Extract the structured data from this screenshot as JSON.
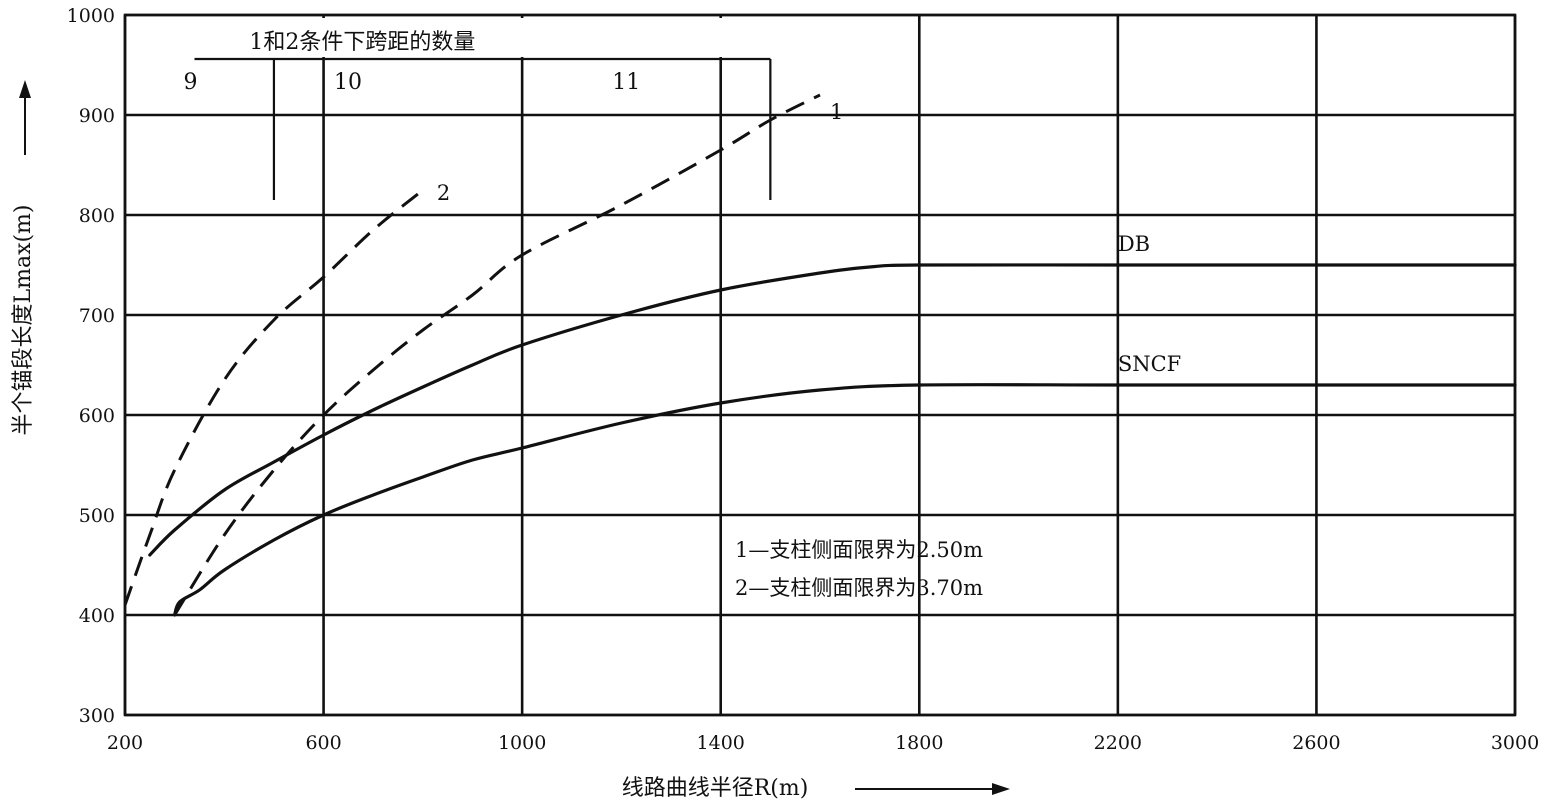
{
  "chart_data": {
    "type": "line",
    "title": "",
    "xlabel": "线路曲线半径R(m)",
    "ylabel": "半个锚段长度Lmax(m)",
    "xlim": [
      200,
      3000
    ],
    "ylim": [
      300,
      1000
    ],
    "x_ticks": [
      "200",
      "600",
      "1000",
      "1400",
      "1800",
      "2200",
      "2600",
      "3000"
    ],
    "y_ticks": [
      "300",
      "400",
      "500",
      "600",
      "700",
      "800",
      "900",
      "1000"
    ],
    "grid": true,
    "series": [
      {
        "name": "DB",
        "style": "solid",
        "points": [
          [
            250,
            460
          ],
          [
            300,
            485
          ],
          [
            400,
            525
          ],
          [
            500,
            553
          ],
          [
            600,
            580
          ],
          [
            700,
            605
          ],
          [
            800,
            628
          ],
          [
            900,
            650
          ],
          [
            1000,
            670
          ],
          [
            1200,
            700
          ],
          [
            1400,
            725
          ],
          [
            1600,
            742
          ],
          [
            1700,
            748
          ],
          [
            1800,
            750
          ],
          [
            2200,
            750
          ],
          [
            2600,
            750
          ],
          [
            3000,
            750
          ]
        ]
      },
      {
        "name": "SNCF",
        "style": "solid",
        "points": [
          [
            300,
            400
          ],
          [
            310,
            413
          ],
          [
            350,
            425
          ],
          [
            400,
            445
          ],
          [
            500,
            475
          ],
          [
            600,
            500
          ],
          [
            700,
            520
          ],
          [
            800,
            538
          ],
          [
            900,
            555
          ],
          [
            1000,
            567
          ],
          [
            1200,
            592
          ],
          [
            1400,
            612
          ],
          [
            1600,
            625
          ],
          [
            1800,
            630
          ],
          [
            2200,
            630
          ],
          [
            2600,
            630
          ],
          [
            3000,
            630
          ]
        ]
      },
      {
        "name": "1",
        "style": "dashed",
        "points": [
          [
            300,
            400
          ],
          [
            400,
            480
          ],
          [
            500,
            545
          ],
          [
            600,
            600
          ],
          [
            700,
            645
          ],
          [
            800,
            685
          ],
          [
            900,
            720
          ],
          [
            1000,
            760
          ],
          [
            1200,
            810
          ],
          [
            1400,
            865
          ],
          [
            1500,
            895
          ],
          [
            1600,
            920
          ]
        ]
      },
      {
        "name": "2",
        "style": "dashed",
        "points": [
          [
            200,
            410
          ],
          [
            250,
            480
          ],
          [
            300,
            545
          ],
          [
            400,
            635
          ],
          [
            500,
            695
          ],
          [
            600,
            738
          ],
          [
            700,
            785
          ],
          [
            800,
            825
          ]
        ]
      }
    ],
    "bracket": {
      "title": "1和2条件下跨距的数量",
      "groups": [
        {
          "label": "9",
          "from": 340,
          "to": 500
        },
        {
          "label": "10",
          "from": 500,
          "to": 1000
        },
        {
          "label": "11",
          "from": 1000,
          "to": 1500
        }
      ],
      "bracket_y": 956,
      "ticks": [
        {
          "x": 500,
          "y_bottom": 815
        },
        {
          "x": 1500,
          "y_bottom": 815
        }
      ]
    },
    "legend": {
      "placement": "lower-center",
      "entries": [
        "1—支柱侧面限界为2.50m",
        "2—支柱侧面限界为3.70m"
      ]
    }
  }
}
